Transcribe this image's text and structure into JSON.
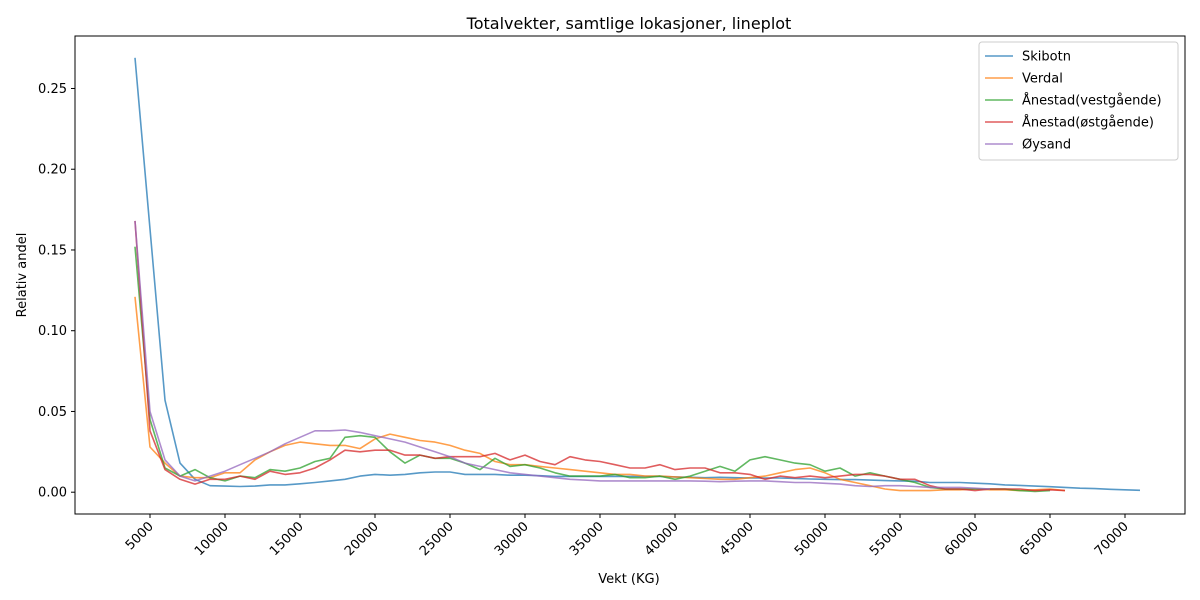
{
  "chart_data": {
    "type": "line",
    "title": "Totalvekter, samtlige lokasjoner, lineplot",
    "xlabel": "Vekt (KG)",
    "ylabel": "Relativ andel",
    "xlim": [
      0,
      74000
    ],
    "ylim": [
      -0.0135,
      0.2825
    ],
    "xticks": [
      5000,
      10000,
      15000,
      20000,
      25000,
      30000,
      35000,
      40000,
      45000,
      50000,
      55000,
      60000,
      65000,
      70000
    ],
    "yticks": [
      0.0,
      0.05,
      0.1,
      0.15,
      0.2,
      0.25
    ],
    "ytick_labels": [
      "0.00",
      "0.05",
      "0.10",
      "0.15",
      "0.20",
      "0.25"
    ],
    "legend_position": "top-right",
    "grid": false,
    "series": [
      {
        "name": "Skibotn",
        "color": "#1f77b4",
        "x": [
          4000,
          5000,
          6000,
          7000,
          8000,
          9000,
          10000,
          11000,
          12000,
          13000,
          14000,
          15000,
          16000,
          17000,
          18000,
          19000,
          20000,
          21000,
          22000,
          23000,
          24000,
          25000,
          26000,
          27000,
          28000,
          29000,
          30000,
          31000,
          32000,
          33000,
          34000,
          35000,
          36000,
          37000,
          38000,
          39000,
          40000,
          41000,
          42000,
          43000,
          44000,
          45000,
          46000,
          47000,
          48000,
          49000,
          50000,
          51000,
          52000,
          53000,
          54000,
          55000,
          56000,
          57000,
          58000,
          59000,
          60000,
          61000,
          62000,
          63000,
          64000,
          65000,
          66000,
          67000,
          68000,
          69000,
          70000,
          71000
        ],
        "values": [
          0.269,
          0.163,
          0.057,
          0.018,
          0.008,
          0.004,
          0.0038,
          0.0035,
          0.0038,
          0.0045,
          0.0045,
          0.0052,
          0.006,
          0.007,
          0.008,
          0.01,
          0.011,
          0.0105,
          0.011,
          0.012,
          0.0125,
          0.0125,
          0.011,
          0.011,
          0.011,
          0.0105,
          0.0105,
          0.0102,
          0.0098,
          0.0098,
          0.0098,
          0.0098,
          0.0098,
          0.0098,
          0.0098,
          0.0098,
          0.0095,
          0.0092,
          0.009,
          0.0092,
          0.009,
          0.0088,
          0.0088,
          0.0088,
          0.0085,
          0.0082,
          0.008,
          0.0078,
          0.0078,
          0.0075,
          0.0072,
          0.007,
          0.0068,
          0.006,
          0.006,
          0.006,
          0.0056,
          0.0052,
          0.0045,
          0.0042,
          0.0038,
          0.0034,
          0.003,
          0.0025,
          0.0022,
          0.0018,
          0.0015,
          0.0012
        ]
      },
      {
        "name": "Verdal",
        "color": "#ff7f0e",
        "x": [
          4000,
          5000,
          6000,
          7000,
          8000,
          9000,
          10000,
          11000,
          12000,
          13000,
          14000,
          15000,
          16000,
          17000,
          18000,
          19000,
          20000,
          21000,
          22000,
          23000,
          24000,
          25000,
          26000,
          27000,
          28000,
          29000,
          30000,
          31000,
          32000,
          33000,
          34000,
          35000,
          36000,
          37000,
          38000,
          39000,
          40000,
          41000,
          42000,
          43000,
          44000,
          45000,
          46000,
          47000,
          48000,
          49000,
          50000,
          51000,
          52000,
          53000,
          54000,
          55000,
          56000,
          57000,
          58000,
          59000,
          60000,
          61000,
          62000,
          63000,
          64000,
          65000,
          66000
        ],
        "values": [
          0.121,
          0.028,
          0.018,
          0.01,
          0.009,
          0.009,
          0.012,
          0.012,
          0.02,
          0.025,
          0.029,
          0.031,
          0.03,
          0.029,
          0.029,
          0.027,
          0.033,
          0.036,
          0.034,
          0.032,
          0.031,
          0.029,
          0.026,
          0.024,
          0.019,
          0.017,
          0.017,
          0.016,
          0.015,
          0.014,
          0.013,
          0.012,
          0.011,
          0.011,
          0.01,
          0.01,
          0.0095,
          0.009,
          0.0085,
          0.008,
          0.008,
          0.009,
          0.01,
          0.012,
          0.014,
          0.015,
          0.012,
          0.008,
          0.006,
          0.004,
          0.002,
          0.001,
          0.001,
          0.001,
          0.0015,
          0.0015,
          0.002,
          0.0015,
          0.0015,
          0.001,
          0.0015,
          0.002,
          0.001
        ]
      },
      {
        "name": "Ånestad(vestgående)",
        "color": "#2ca02c",
        "x": [
          4000,
          5000,
          6000,
          7000,
          8000,
          9000,
          10000,
          11000,
          12000,
          13000,
          14000,
          15000,
          16000,
          17000,
          18000,
          19000,
          20000,
          21000,
          22000,
          23000,
          24000,
          25000,
          26000,
          27000,
          28000,
          29000,
          30000,
          31000,
          32000,
          33000,
          34000,
          35000,
          36000,
          37000,
          38000,
          39000,
          40000,
          41000,
          42000,
          43000,
          44000,
          45000,
          46000,
          47000,
          48000,
          49000,
          50000,
          51000,
          52000,
          53000,
          54000,
          55000,
          56000,
          57000,
          58000,
          59000,
          60000,
          61000,
          62000,
          63000,
          64000,
          65000
        ],
        "values": [
          0.152,
          0.045,
          0.015,
          0.01,
          0.014,
          0.009,
          0.007,
          0.01,
          0.009,
          0.014,
          0.013,
          0.015,
          0.019,
          0.021,
          0.034,
          0.035,
          0.034,
          0.025,
          0.018,
          0.023,
          0.021,
          0.021,
          0.018,
          0.014,
          0.021,
          0.016,
          0.017,
          0.015,
          0.012,
          0.01,
          0.01,
          0.01,
          0.011,
          0.009,
          0.009,
          0.01,
          0.008,
          0.01,
          0.013,
          0.016,
          0.013,
          0.02,
          0.022,
          0.02,
          0.018,
          0.017,
          0.013,
          0.015,
          0.01,
          0.012,
          0.01,
          0.008,
          0.006,
          0.003,
          0.002,
          0.002,
          0.002,
          0.002,
          0.002,
          0.001,
          0.0005,
          0.001
        ]
      },
      {
        "name": "Ånestad(østgående)",
        "color": "#d62728",
        "x": [
          4000,
          5000,
          6000,
          7000,
          8000,
          9000,
          10000,
          11000,
          12000,
          13000,
          14000,
          15000,
          16000,
          17000,
          18000,
          19000,
          20000,
          21000,
          22000,
          23000,
          24000,
          25000,
          26000,
          27000,
          28000,
          29000,
          30000,
          31000,
          32000,
          33000,
          34000,
          35000,
          36000,
          37000,
          38000,
          39000,
          40000,
          41000,
          42000,
          43000,
          44000,
          45000,
          46000,
          47000,
          48000,
          49000,
          50000,
          51000,
          52000,
          53000,
          54000,
          55000,
          56000,
          57000,
          58000,
          59000,
          60000,
          61000,
          62000,
          63000,
          64000,
          65000,
          66000
        ],
        "values": [
          0.168,
          0.038,
          0.014,
          0.008,
          0.005,
          0.008,
          0.008,
          0.01,
          0.008,
          0.013,
          0.011,
          0.012,
          0.015,
          0.02,
          0.026,
          0.025,
          0.026,
          0.026,
          0.023,
          0.023,
          0.021,
          0.022,
          0.022,
          0.022,
          0.024,
          0.02,
          0.023,
          0.019,
          0.017,
          0.022,
          0.02,
          0.019,
          0.017,
          0.015,
          0.015,
          0.017,
          0.014,
          0.015,
          0.015,
          0.012,
          0.012,
          0.011,
          0.008,
          0.01,
          0.009,
          0.01,
          0.009,
          0.01,
          0.011,
          0.011,
          0.01,
          0.008,
          0.008,
          0.004,
          0.002,
          0.002,
          0.001,
          0.002,
          0.002,
          0.002,
          0.001,
          0.0015,
          0.001
        ]
      },
      {
        "name": "Øysand",
        "color": "#9467bd",
        "x": [
          4000,
          5000,
          6000,
          7000,
          8000,
          9000,
          10000,
          11000,
          12000,
          13000,
          14000,
          15000,
          16000,
          17000,
          18000,
          19000,
          20000,
          21000,
          22000,
          23000,
          24000,
          25000,
          26000,
          27000,
          28000,
          29000,
          30000,
          31000,
          32000,
          33000,
          34000,
          35000,
          36000,
          37000,
          38000,
          39000,
          40000,
          41000,
          42000,
          43000,
          44000,
          45000,
          46000,
          47000,
          48000,
          49000,
          50000,
          51000,
          52000,
          53000,
          54000,
          55000,
          56000,
          57000,
          58000,
          59000,
          60000,
          61000
        ],
        "values": [
          0.168,
          0.05,
          0.02,
          0.01,
          0.007,
          0.01,
          0.013,
          0.017,
          0.021,
          0.025,
          0.03,
          0.034,
          0.038,
          0.038,
          0.0385,
          0.037,
          0.035,
          0.033,
          0.031,
          0.028,
          0.025,
          0.022,
          0.018,
          0.016,
          0.014,
          0.012,
          0.011,
          0.01,
          0.009,
          0.008,
          0.0075,
          0.007,
          0.007,
          0.007,
          0.007,
          0.007,
          0.007,
          0.007,
          0.0068,
          0.0065,
          0.0068,
          0.007,
          0.007,
          0.0065,
          0.006,
          0.006,
          0.0055,
          0.005,
          0.004,
          0.0035,
          0.004,
          0.004,
          0.0035,
          0.003,
          0.003,
          0.003,
          0.0025,
          0.002
        ]
      }
    ]
  }
}
